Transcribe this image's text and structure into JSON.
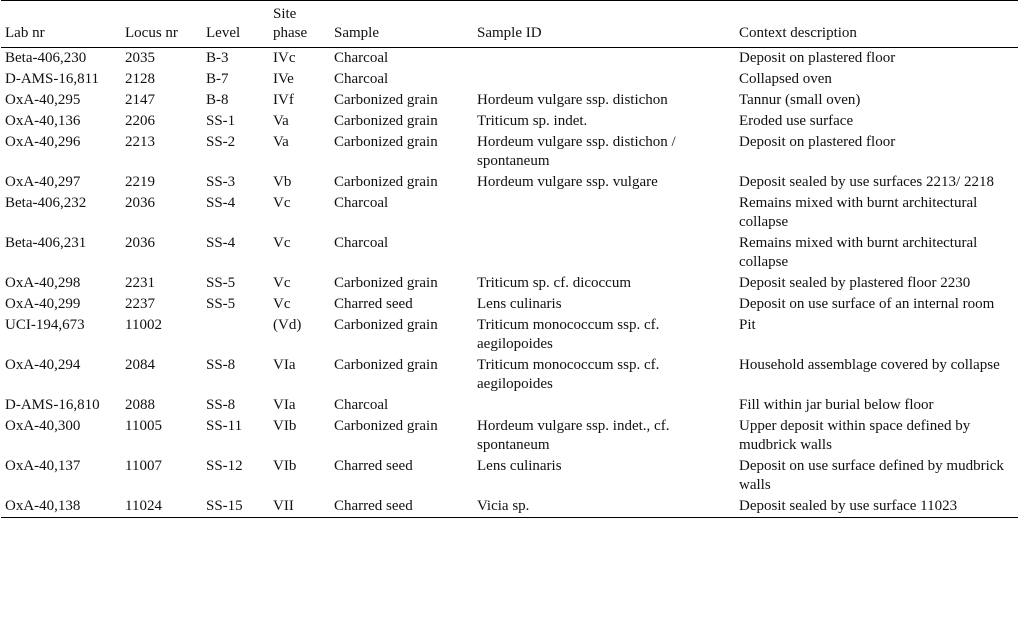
{
  "headers": [
    "Lab nr",
    "Locus nr",
    "Level",
    "Site phase",
    "Sample",
    "Sample ID",
    "Context description"
  ],
  "rows": [
    {
      "lab": "Beta-406,230",
      "locus": "2035",
      "level": "B-3",
      "phase": "IVc",
      "sample": "Charcoal",
      "id": "",
      "context": "Deposit on plastered floor"
    },
    {
      "lab": "D-AMS-16,811",
      "locus": "2128",
      "level": "B-7",
      "phase": "IVe",
      "sample": "Charcoal",
      "id": "",
      "context": "Collapsed oven"
    },
    {
      "lab": "OxA-40,295",
      "locus": "2147",
      "level": "B-8",
      "phase": "IVf",
      "sample": "Carbonized grain",
      "id": "Hordeum vulgare ssp. distichon",
      "context": "Tannur (small oven)"
    },
    {
      "lab": "OxA-40,136",
      "locus": "2206",
      "level": "SS-1",
      "phase": "Va",
      "sample": "Carbonized grain",
      "id": "Triticum sp. indet.",
      "context": "Eroded use surface"
    },
    {
      "lab": "OxA-40,296",
      "locus": "2213",
      "level": "SS-2",
      "phase": "Va",
      "sample": "Carbonized grain",
      "id": "Hordeum vulgare ssp. distichon / spontaneum",
      "context": "Deposit on plastered floor"
    },
    {
      "lab": "OxA-40,297",
      "locus": "2219",
      "level": "SS-3",
      "phase": "Vb",
      "sample": "Carbonized grain",
      "id": "Hordeum vulgare ssp. vulgare",
      "context": "Deposit sealed by use surfaces 2213/ 2218"
    },
    {
      "lab": "Beta-406,232",
      "locus": "2036",
      "level": "SS-4",
      "phase": "Vc",
      "sample": "Charcoal",
      "id": "",
      "context": "Remains mixed with burnt architectural collapse"
    },
    {
      "lab": "Beta-406,231",
      "locus": "2036",
      "level": "SS-4",
      "phase": "Vc",
      "sample": "Charcoal",
      "id": "",
      "context": "Remains mixed with burnt architectural collapse"
    },
    {
      "lab": "OxA-40,298",
      "locus": "2231",
      "level": "SS-5",
      "phase": "Vc",
      "sample": "Carbonized grain",
      "id": "Triticum sp. cf. dicoccum",
      "context": "Deposit sealed by plastered floor 2230"
    },
    {
      "lab": "OxA-40,299",
      "locus": "2237",
      "level": "SS-5",
      "phase": "Vc",
      "sample": "Charred seed",
      "id": "Lens culinaris",
      "context": "Deposit on use surface of an internal room"
    },
    {
      "lab": "UCI-194,673",
      "locus": "11002",
      "level": "",
      "phase": "(Vd)",
      "sample": "Carbonized grain",
      "id": "Triticum monococcum ssp. cf. aegilopoides",
      "context": "Pit"
    },
    {
      "lab": "OxA-40,294",
      "locus": "2084",
      "level": "SS-8",
      "phase": "VIa",
      "sample": "Carbonized grain",
      "id": "Triticum monococcum ssp. cf. aegilopoides",
      "context": "Household assemblage covered by collapse"
    },
    {
      "lab": "D-AMS-16,810",
      "locus": "2088",
      "level": "SS-8",
      "phase": "VIa",
      "sample": "Charcoal",
      "id": "",
      "context": "Fill within jar burial below floor"
    },
    {
      "lab": "OxA-40,300",
      "locus": "11005",
      "level": "SS-11",
      "phase": "VIb",
      "sample": "Carbonized grain",
      "id": "Hordeum vulgare ssp. indet., cf. spontaneum",
      "context": "Upper deposit within space defined by mudbrick walls"
    },
    {
      "lab": "OxA-40,137",
      "locus": "11007",
      "level": "SS-12",
      "phase": "VIb",
      "sample": "Charred seed",
      "id": "Lens culinaris",
      "context": "Deposit on use surface defined by mudbrick walls"
    },
    {
      "lab": "OxA-40,138",
      "locus": "11024",
      "level": "SS-15",
      "phase": "VII",
      "sample": "Charred seed",
      "id": "Vicia sp.",
      "context": "Deposit sealed by use surface 11023"
    }
  ]
}
